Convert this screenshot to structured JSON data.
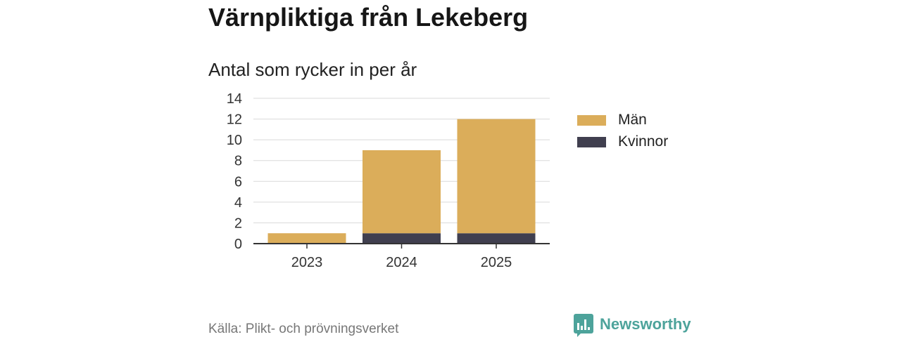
{
  "chart_data": {
    "type": "bar",
    "stacked": true,
    "title": "Värnpliktiga från Lekeberg",
    "subtitle": "Antal som rycker in per år",
    "categories": [
      "2023",
      "2024",
      "2025"
    ],
    "series": [
      {
        "name": "Män",
        "values": [
          1,
          8,
          11
        ],
        "color": "#dbad5a"
      },
      {
        "name": "Kvinnor",
        "values": [
          0,
          1,
          1
        ],
        "color": "#403f4f"
      }
    ],
    "xlabel": "",
    "ylabel": "",
    "ylim": [
      0,
      14
    ],
    "yticks": [
      0,
      2,
      4,
      6,
      8,
      10,
      12,
      14
    ],
    "grid": true,
    "legend_position": "right"
  },
  "source": "Källa: Plikt- och prövningsverket",
  "brand": {
    "name": "Newsworthy",
    "icon": "newsworthy-logo-icon",
    "color": "#4da39b"
  }
}
